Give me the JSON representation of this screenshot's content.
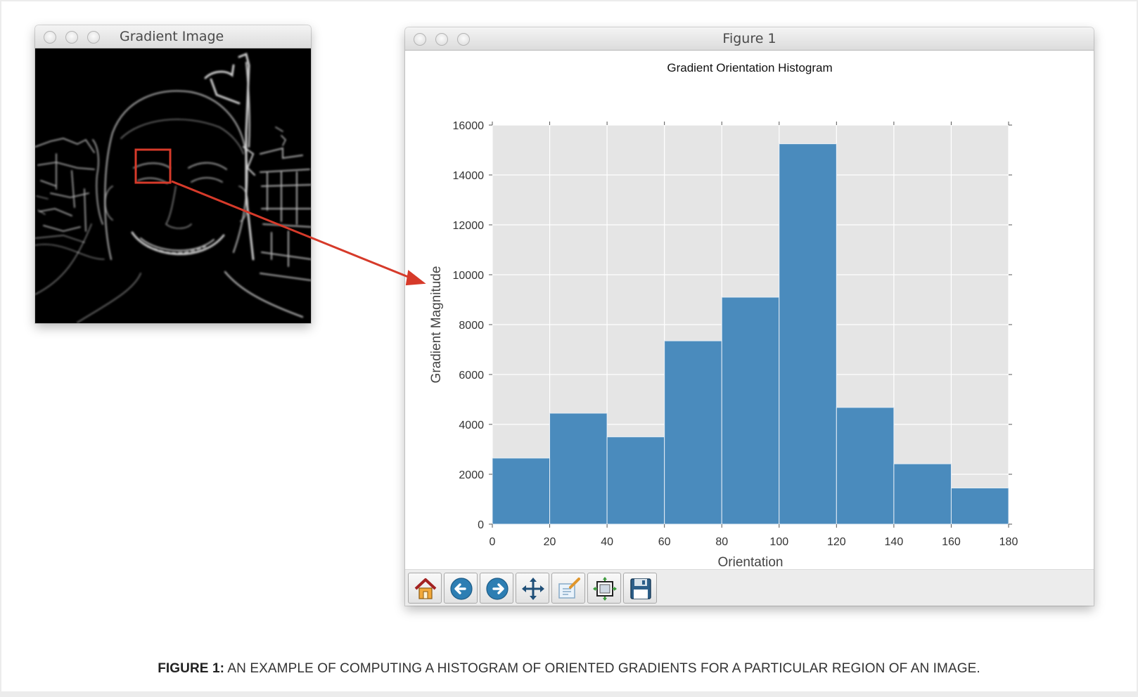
{
  "gradient_window": {
    "title": "Gradient Image"
  },
  "figure_window": {
    "title": "Figure 1",
    "toolbar": [
      {
        "name": "home-icon",
        "label": "Home"
      },
      {
        "name": "back-icon",
        "label": "Back"
      },
      {
        "name": "forward-icon",
        "label": "Forward"
      },
      {
        "name": "pan-icon",
        "label": "Pan"
      },
      {
        "name": "zoom-icon",
        "label": "Zoom"
      },
      {
        "name": "subplots-icon",
        "label": "Configure subplots"
      },
      {
        "name": "save-icon",
        "label": "Save"
      }
    ]
  },
  "chart_data": {
    "type": "bar",
    "title": "Gradient Orientation Histogram",
    "xlabel": "Orientation",
    "ylabel": "Gradient Magnitude",
    "bin_edges": [
      0,
      20,
      40,
      60,
      80,
      100,
      120,
      140,
      160,
      180
    ],
    "values": [
      2650,
      4450,
      3500,
      7350,
      9100,
      15250,
      4680,
      2420,
      1450
    ],
    "xlim": [
      0,
      180
    ],
    "ylim": [
      0,
      16000
    ],
    "xticks": [
      0,
      20,
      40,
      60,
      80,
      100,
      120,
      140,
      160,
      180
    ],
    "yticks": [
      0,
      2000,
      4000,
      6000,
      8000,
      10000,
      12000,
      14000,
      16000
    ],
    "grid": true,
    "bar_color": "#4a8bbd",
    "background_color": "#e5e5e5"
  },
  "annotation": {
    "highlight_color": "#d63a2a"
  },
  "caption": {
    "label": "FIGURE 1:",
    "text": "AN EXAMPLE OF COMPUTING A HISTOGRAM OF ORIENTED GRADIENTS FOR A PARTICULAR REGION OF AN IMAGE."
  }
}
